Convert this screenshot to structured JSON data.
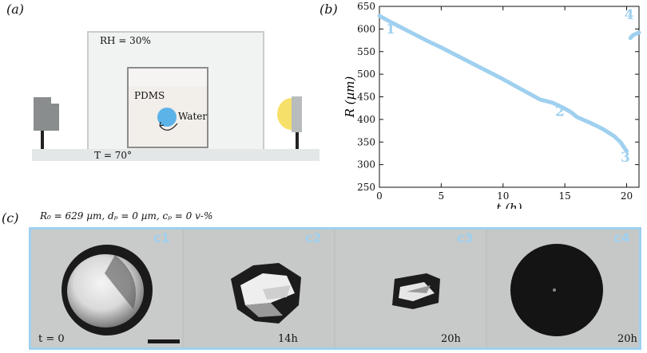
{
  "panel_a": {
    "label": "(a)",
    "rh_text": "RH = 30%",
    "pdms_text": "PDMS",
    "water_text": "Water",
    "temp_text": "T = 70°"
  },
  "panel_b": {
    "label": "(b)"
  },
  "panel_c": {
    "label": "(c)",
    "params_text": "R₀ = 629 µm, dₚ = 0 µm, cₚ = 0 v-%",
    "frames": [
      {
        "tag": "c1",
        "time": "t = 0"
      },
      {
        "tag": "c2",
        "time": "14h"
      },
      {
        "tag": "c3",
        "time": "20h"
      },
      {
        "tag": "c4",
        "time": "20h"
      }
    ]
  },
  "colors": {
    "curve": "#9fd0ef",
    "frame_border": "#9fd0ef",
    "water_drop": "#5cb3e8",
    "lamp": "#f6e06a"
  },
  "chart_data": {
    "type": "line",
    "xlabel": "t (h)",
    "ylabel": "R (µm)",
    "xlim": [
      0,
      21
    ],
    "ylim": [
      250,
      650
    ],
    "xticks": [
      0,
      5,
      10,
      15,
      20
    ],
    "yticks": [
      250,
      300,
      350,
      400,
      450,
      500,
      550,
      600,
      650
    ],
    "grid": false,
    "series": [
      {
        "x": [
          0,
          1,
          2,
          3,
          4,
          5,
          6,
          7,
          8,
          9,
          10,
          11,
          12,
          13,
          14,
          15,
          15.5,
          16,
          17,
          18,
          19,
          19.5,
          20
        ],
        "y": [
          629,
          614,
          600,
          586,
          572,
          559,
          545,
          531,
          517,
          503,
          489,
          474,
          459,
          444,
          437,
          424,
          416,
          405,
          393,
          380,
          363,
          350,
          330
        ]
      },
      {
        "x": [
          20.3,
          20.5,
          20.8,
          21
        ],
        "y": [
          580,
          586,
          590,
          592
        ]
      }
    ],
    "annotations": [
      {
        "text": "1",
        "x": 0.9,
        "y": 590
      },
      {
        "text": "2",
        "x": 14.6,
        "y": 408
      },
      {
        "text": "3",
        "x": 19.9,
        "y": 306
      },
      {
        "text": "4",
        "x": 20.2,
        "y": 622
      }
    ]
  }
}
